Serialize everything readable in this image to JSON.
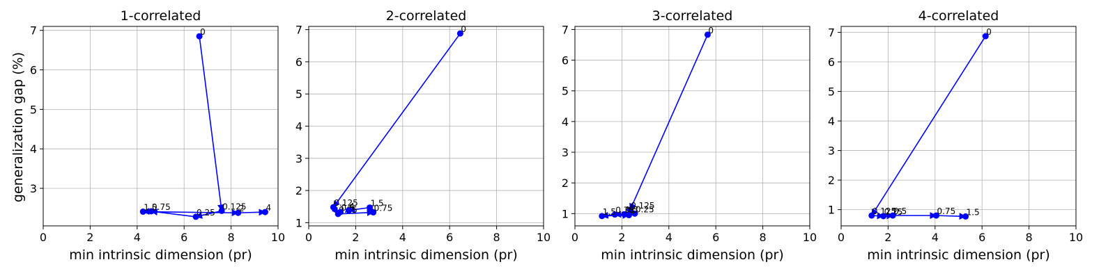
{
  "figure": {
    "ylabel": "generalization gap (%)"
  },
  "chart_data": [
    {
      "type": "scatter",
      "title": "1-correlated",
      "xlabel": "min intrinsic dimension (pr)",
      "xlim": [
        0,
        10
      ],
      "ylim": [
        2.05,
        7.1
      ],
      "xticks": [
        0,
        2,
        4,
        6,
        8,
        10
      ],
      "yticks": [
        3,
        4,
        5,
        6,
        7
      ],
      "grid": true,
      "color": "#0000ff",
      "points": [
        {
          "label": "0",
          "x": 6.65,
          "y": 6.85
        },
        {
          "label": "0.125",
          "x": 7.6,
          "y": 2.43
        },
        {
          "label": "0.25",
          "x": 6.5,
          "y": 2.28
        },
        {
          "label": "0.75",
          "x": 4.6,
          "y": 2.42
        },
        {
          "label": "1.5",
          "x": 4.25,
          "y": 2.41
        },
        {
          "label": "2",
          "x": 8.3,
          "y": 2.38
        },
        {
          "label": "4",
          "x": 9.45,
          "y": 2.4
        }
      ],
      "path": [
        "0",
        "0.125",
        "0.25",
        "0.75",
        "1.5",
        "2",
        "4"
      ]
    },
    {
      "type": "scatter",
      "title": "2-correlated",
      "xlabel": "min intrinsic dimension (pr)",
      "xlim": [
        0,
        10
      ],
      "ylim": [
        0.9,
        7.1
      ],
      "xticks": [
        0,
        2,
        4,
        6,
        8,
        10
      ],
      "yticks": [
        1,
        2,
        3,
        4,
        5,
        6,
        7
      ],
      "grid": true,
      "color": "#0000ff",
      "points": [
        {
          "label": "0",
          "x": 6.45,
          "y": 6.88
        },
        {
          "label": "0.125",
          "x": 1.05,
          "y": 1.48
        },
        {
          "label": "0.25",
          "x": 1.25,
          "y": 1.27
        },
        {
          "label": "0.5",
          "x": 1.35,
          "y": 1.33
        },
        {
          "label": "0.75",
          "x": 2.75,
          "y": 1.32
        },
        {
          "label": "1.5",
          "x": 2.6,
          "y": 1.47
        },
        {
          "label": "4",
          "x": 1.7,
          "y": 1.38
        }
      ],
      "path": [
        "0",
        "0.125",
        "0.25",
        "0.75",
        "1.5",
        "4"
      ]
    },
    {
      "type": "scatter",
      "title": "3-correlated",
      "xlabel": "min intrinsic dimension (pr)",
      "xlim": [
        0,
        10
      ],
      "ylim": [
        0.6,
        7.1
      ],
      "xticks": [
        0,
        2,
        4,
        6,
        8,
        10
      ],
      "yticks": [
        1,
        2,
        3,
        4,
        5,
        6,
        7
      ],
      "grid": true,
      "color": "#0000ff",
      "points": [
        {
          "label": "0",
          "x": 5.65,
          "y": 6.83
        },
        {
          "label": "0.125",
          "x": 2.35,
          "y": 1.12
        },
        {
          "label": "0.25",
          "x": 2.55,
          "y": 1.0
        },
        {
          "label": "0.5",
          "x": 2.1,
          "y": 0.98
        },
        {
          "label": "0.75",
          "x": 1.7,
          "y": 0.97
        },
        {
          "label": "1.5",
          "x": 1.15,
          "y": 0.92
        },
        {
          "label": "4",
          "x": 2.3,
          "y": 0.95
        }
      ],
      "path": [
        "0",
        "0.125",
        "0.25",
        "0.5",
        "0.75",
        "1.5",
        "4"
      ]
    },
    {
      "type": "scatter",
      "title": "4-correlated",
      "xlabel": "min intrinsic dimension (pr)",
      "xlim": [
        0,
        10
      ],
      "ylim": [
        0.45,
        7.2
      ],
      "xticks": [
        0,
        2,
        4,
        6,
        8,
        10
      ],
      "yticks": [
        1,
        2,
        3,
        4,
        5,
        6,
        7
      ],
      "grid": true,
      "color": "#0000ff",
      "points": [
        {
          "label": "0",
          "x": 6.15,
          "y": 6.87
        },
        {
          "label": "0.125",
          "x": 1.3,
          "y": 0.8
        },
        {
          "label": "0.25",
          "x": 1.8,
          "y": 0.78
        },
        {
          "label": "0.5",
          "x": 2.2,
          "y": 0.8
        },
        {
          "label": "0.75",
          "x": 4.05,
          "y": 0.8
        },
        {
          "label": "1.5",
          "x": 5.3,
          "y": 0.77
        }
      ],
      "path": [
        "0",
        "0.125",
        "0.25",
        "0.5",
        "0.75",
        "1.5"
      ]
    }
  ]
}
